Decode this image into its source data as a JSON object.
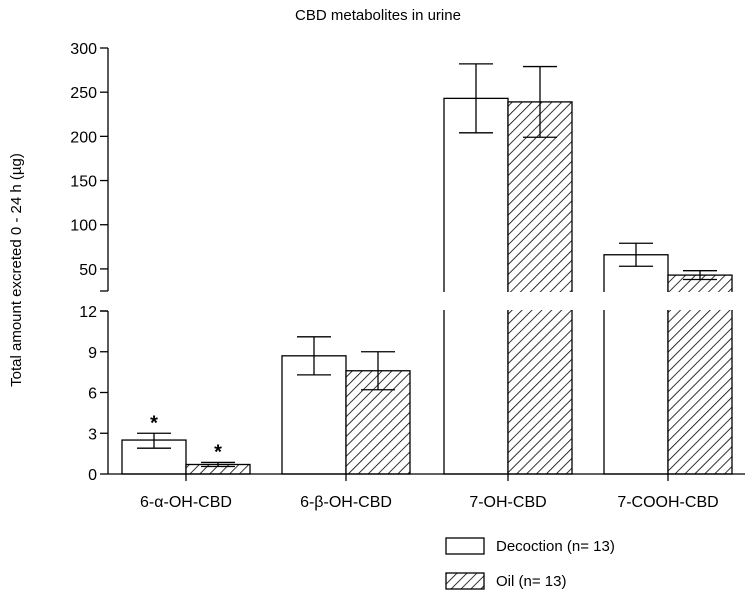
{
  "chart_data": {
    "type": "bar",
    "title": "CBD metabolites in urine",
    "ylabel": "Total amount excreted 0 - 24 h (µg)",
    "categories": [
      "6-α-OH-CBD",
      "6-β-OH-CBD",
      "7-OH-CBD",
      "7-COOH-CBD"
    ],
    "series": [
      {
        "name": "Decoction (n= 13)",
        "fill": "open",
        "values": [
          2.5,
          8.7,
          243,
          66
        ],
        "err_low": [
          1.9,
          7.3,
          204,
          53
        ],
        "err_high": [
          3.0,
          10.1,
          282,
          79
        ]
      },
      {
        "name": "Oil (n= 13)",
        "fill": "hatched",
        "values": [
          0.7,
          7.6,
          239,
          43
        ],
        "err_low": [
          0.55,
          6.2,
          199,
          38
        ],
        "err_high": [
          0.85,
          9.0,
          279,
          48
        ]
      }
    ],
    "significance": [
      {
        "category": 0,
        "series": 0,
        "label": "*"
      },
      {
        "category": 0,
        "series": 1,
        "label": "*"
      }
    ],
    "axis_break": true,
    "lower_segment": {
      "ylim": [
        0,
        12
      ],
      "ticks": [
        0,
        3,
        6,
        9,
        12
      ]
    },
    "upper_segment": {
      "ylim": [
        25,
        300
      ],
      "ticks": [
        50,
        100,
        150,
        200,
        250,
        300
      ]
    },
    "grid": false,
    "legend_position": "bottom-right",
    "colors": {
      "bar_fill": "#ffffff",
      "stroke": "#000000",
      "hatch": "#000000"
    }
  }
}
